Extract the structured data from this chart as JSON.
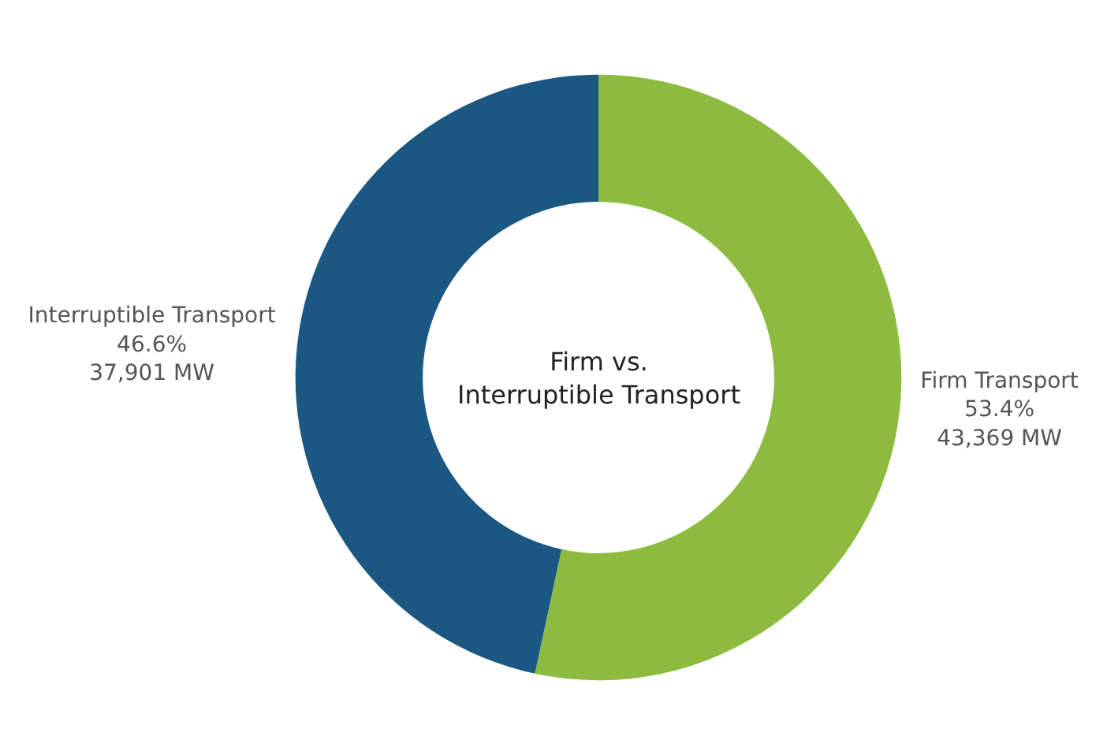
{
  "chart_data": {
    "type": "donut",
    "title": "Firm vs. Interruptible Transport",
    "categories": [
      "Firm Transport",
      "Interruptible Transport"
    ],
    "values": [
      43369,
      37901
    ],
    "value_labels": [
      "53.4%\n43,369 MW",
      "46.6%\n37,901 MW"
    ],
    "colors": [
      "#8cbb40",
      "#1a5781"
    ],
    "legend": false
  }
}
